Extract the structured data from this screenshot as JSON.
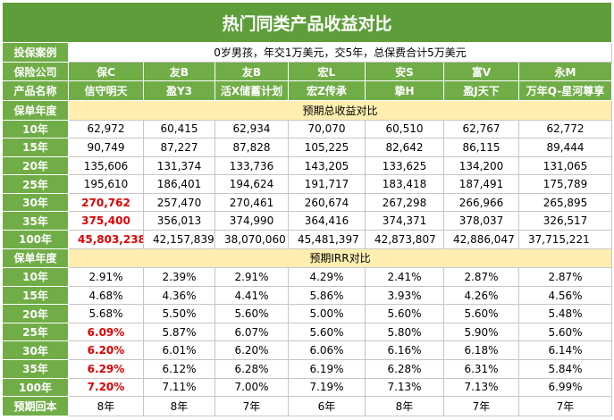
{
  "title": "热门同类产品收益对比",
  "case": {
    "label": "投保案例",
    "text": "0岁男孩，年交1万美元，交5年，总保费合计5万美元"
  },
  "company": {
    "label": "保险公司",
    "values": [
      "保C",
      "友B",
      "友B",
      "宏L",
      "安S",
      "富V",
      "永M"
    ]
  },
  "product": {
    "label": "产品名称",
    "values": [
      "信守明天",
      "盈Y3",
      "活X储蓄计划",
      "宏Z传承",
      "挚H",
      "盈J天下",
      "万年Q-星河尊享"
    ]
  },
  "returns": {
    "label": "保单年度",
    "section": "预期总收益对比",
    "rows": [
      {
        "year": "10年",
        "values": [
          "62,972",
          "60,415",
          "62,934",
          "70,070",
          "60,510",
          "62,767",
          "62,772"
        ]
      },
      {
        "year": "15年",
        "values": [
          "90,749",
          "87,227",
          "87,828",
          "105,225",
          "82,642",
          "86,115",
          "89,444"
        ]
      },
      {
        "year": "20年",
        "values": [
          "135,606",
          "131,374",
          "133,736",
          "143,205",
          "133,625",
          "134,200",
          "131,065"
        ]
      },
      {
        "year": "25年",
        "values": [
          "195,610",
          "186,401",
          "194,624",
          "191,717",
          "183,418",
          "187,491",
          "175,789"
        ]
      },
      {
        "year": "30年",
        "values": [
          "270,762",
          "257,470",
          "270,461",
          "260,674",
          "267,298",
          "266,966",
          "265,895"
        ]
      },
      {
        "year": "35年",
        "values": [
          "375,400",
          "356,013",
          "374,990",
          "364,416",
          "374,371",
          "378,037",
          "326,517"
        ]
      },
      {
        "year": "100年",
        "values": [
          "45,803,238",
          "42,157,839",
          "38,070,060",
          "45,481,397",
          "42,873,807",
          "42,886,047",
          "37,715,221"
        ]
      }
    ]
  },
  "irr": {
    "label": "保单年度",
    "section": "预期IRR对比",
    "rows": [
      {
        "year": "10年",
        "values": [
          "2.91%",
          "2.39%",
          "2.91%",
          "4.29%",
          "2.41%",
          "2.87%",
          "2.87%"
        ]
      },
      {
        "year": "15年",
        "values": [
          "4.68%",
          "4.36%",
          "4.41%",
          "5.86%",
          "3.93%",
          "4.26%",
          "4.56%"
        ]
      },
      {
        "year": "20年",
        "values": [
          "5.68%",
          "5.50%",
          "5.60%",
          "5.00%",
          "5.60%",
          "5.60%",
          "5.48%"
        ]
      },
      {
        "year": "25年",
        "values": [
          "6.09%",
          "5.87%",
          "6.07%",
          "5.60%",
          "5.80%",
          "5.90%",
          "5.60%"
        ]
      },
      {
        "year": "30年",
        "values": [
          "6.20%",
          "6.01%",
          "6.20%",
          "6.06%",
          "6.16%",
          "6.18%",
          "6.14%"
        ]
      },
      {
        "year": "35年",
        "values": [
          "6.29%",
          "6.12%",
          "6.28%",
          "6.19%",
          "6.28%",
          "6.31%",
          "5.84%"
        ]
      },
      {
        "year": "100年",
        "values": [
          "7.20%",
          "7.11%",
          "7.00%",
          "7.19%",
          "7.13%",
          "7.13%",
          "6.99%"
        ]
      }
    ]
  },
  "payback": {
    "label": "预期回本",
    "values": [
      "8年",
      "8年",
      "7年",
      "6年",
      "8年",
      "7年",
      "7年"
    ]
  }
}
